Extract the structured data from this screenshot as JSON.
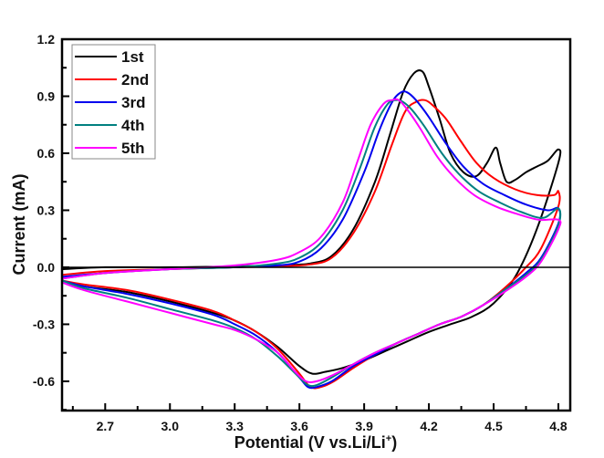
{
  "chart_data": {
    "type": "line",
    "title": "",
    "xlabel": "Potential (V vs.Li/Li",
    "xlabel_sup": "+",
    "xlabel_close": ")",
    "ylabel": "Current (mA)",
    "xlim": [
      2.5,
      4.855
    ],
    "ylim": [
      -0.754,
      1.2
    ],
    "xticks": [
      2.7,
      3.0,
      3.3,
      3.6,
      3.9,
      4.2,
      4.5,
      4.8
    ],
    "xtick_labels": [
      "2.7",
      "3.0",
      "3.3",
      "3.6",
      "3.9",
      "4.2",
      "4.5",
      "4.8"
    ],
    "yticks": [
      -0.6,
      -0.3,
      0.0,
      0.3,
      0.6,
      0.9,
      1.2
    ],
    "ytick_labels": [
      "-0.6",
      "-0.3",
      "0.0",
      "0.3",
      "0.6",
      "0.9",
      "1.2"
    ],
    "grid": false,
    "legend_position": "top-left",
    "series": [
      {
        "name": "1st",
        "color": "#000000",
        "x": [
          2.5,
          2.7,
          3.0,
          3.3,
          3.5,
          3.65,
          3.75,
          3.85,
          3.95,
          4.02,
          4.08,
          4.13,
          4.17,
          4.2,
          4.25,
          4.3,
          4.36,
          4.42,
          4.47,
          4.51,
          4.53,
          4.56,
          4.6,
          4.65,
          4.7,
          4.75,
          4.8,
          4.8,
          4.7,
          4.6,
          4.5,
          4.4,
          4.3,
          4.2,
          4.1,
          4.0,
          3.9,
          3.8,
          3.72,
          3.66,
          3.6,
          3.5,
          3.4,
          3.3,
          3.2,
          3.0,
          2.8,
          2.6,
          2.5
        ],
        "y": [
          -0.01,
          0.0,
          0.0,
          0.005,
          0.01,
          0.02,
          0.06,
          0.2,
          0.45,
          0.7,
          0.92,
          1.02,
          1.03,
          0.95,
          0.78,
          0.6,
          0.5,
          0.48,
          0.55,
          0.63,
          0.55,
          0.45,
          0.46,
          0.5,
          0.53,
          0.56,
          0.62,
          0.55,
          0.2,
          -0.05,
          -0.19,
          -0.26,
          -0.3,
          -0.34,
          -0.39,
          -0.44,
          -0.49,
          -0.53,
          -0.55,
          -0.56,
          -0.52,
          -0.42,
          -0.34,
          -0.28,
          -0.24,
          -0.18,
          -0.13,
          -0.1,
          -0.07
        ]
      },
      {
        "name": "2nd",
        "color": "#ff0000",
        "x": [
          2.5,
          2.7,
          3.0,
          3.3,
          3.5,
          3.65,
          3.75,
          3.85,
          3.95,
          4.03,
          4.09,
          4.14,
          4.18,
          4.22,
          4.28,
          4.35,
          4.42,
          4.5,
          4.6,
          4.7,
          4.78,
          4.8,
          4.8,
          4.72,
          4.65,
          4.55,
          4.45,
          4.35,
          4.25,
          4.15,
          4.05,
          3.95,
          3.85,
          3.76,
          3.7,
          3.65,
          3.6,
          3.5,
          3.4,
          3.3,
          3.2,
          3.0,
          2.8,
          2.6,
          2.5
        ],
        "y": [
          -0.04,
          -0.02,
          -0.01,
          0.0,
          0.005,
          0.015,
          0.05,
          0.18,
          0.4,
          0.65,
          0.82,
          0.87,
          0.88,
          0.85,
          0.78,
          0.66,
          0.55,
          0.47,
          0.41,
          0.38,
          0.38,
          0.4,
          0.32,
          0.1,
          0.0,
          -0.11,
          -0.2,
          -0.26,
          -0.3,
          -0.35,
          -0.4,
          -0.46,
          -0.53,
          -0.6,
          -0.63,
          -0.63,
          -0.56,
          -0.43,
          -0.34,
          -0.28,
          -0.23,
          -0.17,
          -0.12,
          -0.09,
          -0.07
        ]
      },
      {
        "name": "3rd",
        "color": "#0000ee",
        "x": [
          2.5,
          2.7,
          3.0,
          3.3,
          3.5,
          3.6,
          3.7,
          3.8,
          3.9,
          3.97,
          4.03,
          4.07,
          4.1,
          4.14,
          4.2,
          4.28,
          4.36,
          4.45,
          4.55,
          4.65,
          4.75,
          4.8,
          4.8,
          4.72,
          4.65,
          4.55,
          4.45,
          4.35,
          4.25,
          4.15,
          4.05,
          3.95,
          3.85,
          3.75,
          3.68,
          3.64,
          3.6,
          3.5,
          3.4,
          3.3,
          3.2,
          3.0,
          2.8,
          2.6,
          2.5
        ],
        "y": [
          -0.05,
          -0.03,
          -0.01,
          0.0,
          0.01,
          0.03,
          0.1,
          0.25,
          0.5,
          0.72,
          0.87,
          0.92,
          0.92,
          0.88,
          0.79,
          0.65,
          0.53,
          0.44,
          0.38,
          0.33,
          0.3,
          0.31,
          0.23,
          0.05,
          -0.03,
          -0.12,
          -0.2,
          -0.26,
          -0.3,
          -0.35,
          -0.4,
          -0.46,
          -0.52,
          -0.6,
          -0.63,
          -0.63,
          -0.58,
          -0.45,
          -0.36,
          -0.3,
          -0.25,
          -0.19,
          -0.14,
          -0.1,
          -0.07
        ]
      },
      {
        "name": "4th",
        "color": "#008080",
        "x": [
          2.5,
          2.7,
          3.0,
          3.3,
          3.5,
          3.6,
          3.7,
          3.8,
          3.88,
          3.95,
          4.01,
          4.05,
          4.08,
          4.12,
          4.18,
          4.26,
          4.34,
          4.43,
          4.53,
          4.63,
          4.73,
          4.8,
          4.8,
          4.72,
          4.65,
          4.55,
          4.45,
          4.35,
          4.25,
          4.15,
          4.05,
          3.95,
          3.85,
          3.75,
          3.68,
          3.64,
          3.6,
          3.5,
          3.4,
          3.3,
          3.2,
          3.0,
          2.8,
          2.6,
          2.5
        ],
        "y": [
          -0.06,
          -0.03,
          -0.01,
          0.0,
          0.02,
          0.05,
          0.13,
          0.3,
          0.52,
          0.74,
          0.86,
          0.88,
          0.87,
          0.83,
          0.74,
          0.6,
          0.49,
          0.4,
          0.34,
          0.29,
          0.26,
          0.31,
          0.22,
          0.04,
          -0.04,
          -0.12,
          -0.2,
          -0.26,
          -0.3,
          -0.35,
          -0.4,
          -0.45,
          -0.51,
          -0.58,
          -0.62,
          -0.62,
          -0.58,
          -0.47,
          -0.38,
          -0.32,
          -0.28,
          -0.22,
          -0.16,
          -0.11,
          -0.07
        ]
      },
      {
        "name": "5th",
        "color": "#ff00ff",
        "x": [
          2.5,
          2.7,
          3.0,
          3.3,
          3.5,
          3.6,
          3.7,
          3.8,
          3.87,
          3.93,
          3.99,
          4.03,
          4.06,
          4.1,
          4.16,
          4.24,
          4.32,
          4.41,
          4.51,
          4.61,
          4.71,
          4.8,
          4.8,
          4.72,
          4.65,
          4.55,
          4.45,
          4.35,
          4.25,
          4.15,
          4.05,
          3.95,
          3.85,
          3.75,
          3.68,
          3.63,
          3.58,
          3.5,
          3.4,
          3.3,
          3.2,
          3.0,
          2.8,
          2.6,
          2.5
        ],
        "y": [
          -0.06,
          -0.03,
          -0.01,
          0.01,
          0.04,
          0.08,
          0.16,
          0.34,
          0.56,
          0.75,
          0.86,
          0.88,
          0.88,
          0.83,
          0.73,
          0.58,
          0.47,
          0.38,
          0.32,
          0.28,
          0.25,
          0.25,
          0.2,
          0.03,
          -0.05,
          -0.13,
          -0.2,
          -0.26,
          -0.3,
          -0.35,
          -0.4,
          -0.45,
          -0.51,
          -0.57,
          -0.6,
          -0.6,
          -0.55,
          -0.45,
          -0.38,
          -0.33,
          -0.3,
          -0.24,
          -0.18,
          -0.12,
          -0.08
        ]
      }
    ]
  }
}
